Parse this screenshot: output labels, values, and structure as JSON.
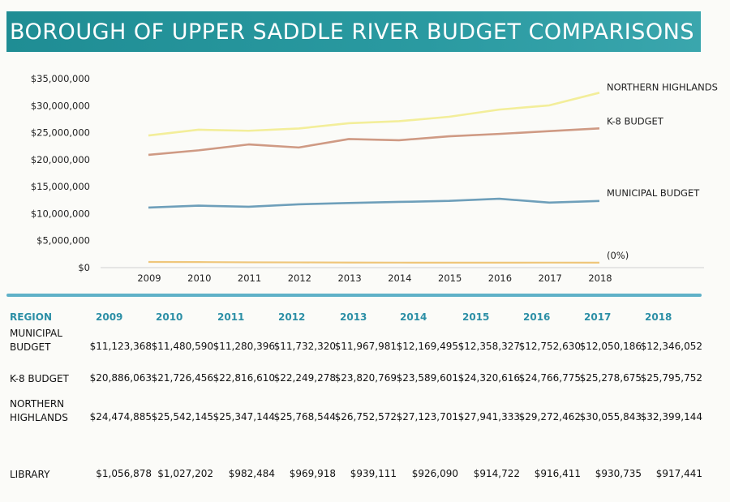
{
  "title": "BOROUGH OF UPPER SADDLE RIVER BUDGET COMPARISONS",
  "colors": {
    "banner": "#2a9aa1",
    "northern_highlands": "#f3ee9a",
    "k8_budget": "#cf9a84",
    "municipal_budget": "#6e9fba",
    "library": "#efc67a",
    "header_text": "#2c8fa6"
  },
  "chart_data": {
    "type": "line",
    "categories": [
      "2009",
      "2010",
      "2011",
      "2012",
      "2013",
      "2014",
      "2015",
      "2016",
      "2017",
      "2018"
    ],
    "yticks": [
      "$35,000,000",
      "$30,000,000",
      "$25,000,000",
      "$20,000,000",
      "$15,000,000",
      "$10,000,000",
      "$5,000,000",
      "$0"
    ],
    "ylim": [
      0,
      35000000
    ],
    "series": [
      {
        "name": "NORTHERN HIGHLANDS",
        "values": [
          24474885,
          25542145,
          25347144,
          25768544,
          26752572,
          27123701,
          27941333,
          29272462,
          30055843,
          32399144
        ]
      },
      {
        "name": "K-8 BUDGET",
        "values": [
          20886063,
          21726456,
          22816610,
          22249278,
          23820769,
          23589601,
          24320616,
          24766775,
          25278675,
          25795752
        ]
      },
      {
        "name": "MUNICIPAL BUDGET",
        "values": [
          11123368,
          11480590,
          11280396,
          11732320,
          11967981,
          12169495,
          12358327,
          12752630,
          12050186,
          12346052
        ]
      },
      {
        "name": "(0%)",
        "values": [
          1056878,
          1027202,
          982484,
          969918,
          939111,
          926090,
          914722,
          916411,
          930735,
          917441
        ]
      }
    ],
    "grid": false,
    "legend": "right"
  },
  "table": {
    "header": [
      "REGION",
      "2009",
      "2010",
      "2011",
      "2012",
      "2013",
      "2014",
      "2015",
      "2016",
      "2017",
      "2018"
    ],
    "rows": [
      {
        "label_lines": [
          "MUNICIPAL",
          "BUDGET"
        ],
        "cells": [
          "$11,123,368",
          "$11,480,590",
          "$11,280,396",
          "$11,732,320",
          "$11,967,981",
          "$12,169,495",
          "$12,358,327",
          "$12,752,630",
          "$12,050,186",
          "$12,346,052"
        ]
      },
      {
        "label_lines": [
          "K-8 BUDGET"
        ],
        "cells": [
          "$20,886,063",
          "$21,726,456",
          "$22,816,610",
          "$22,249,278",
          "$23,820,769",
          "$23,589,601",
          "$24,320,616",
          "$24,766,775",
          "$25,278,675",
          "$25,795,752"
        ]
      },
      {
        "label_lines": [
          "NORTHERN",
          "HIGHLANDS"
        ],
        "cells": [
          "$24,474,885",
          "$25,542,145",
          "$25,347,144",
          "$25,768,544",
          "$26,752,572",
          "$27,123,701",
          "$27,941,333",
          "$29,272,462",
          "$30,055,843",
          "$32,399,144"
        ]
      },
      {
        "label_lines": [
          "LIBRARY"
        ],
        "cells": [
          "$1,056,878",
          "$1,027,202",
          "$982,484",
          "$969,918",
          "$939,111",
          "$926,090",
          "$914,722",
          "$916,411",
          "$930,735",
          "$917,441"
        ]
      }
    ]
  }
}
